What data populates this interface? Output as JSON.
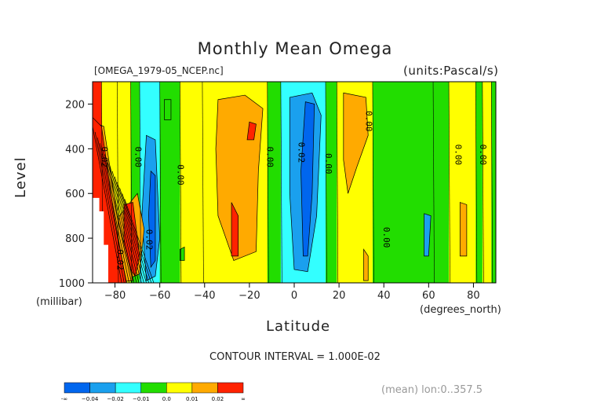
{
  "chart_data": {
    "type": "heatmap",
    "title": "Monthly Mean Omega",
    "file_label": "[OMEGA_1979-05_NCEP.nc]",
    "units_label": "(units:Pascal/s)",
    "ylabel": "Level",
    "yunit": "(millibar)",
    "xlabel": "Latitude",
    "xunit": "(degrees_north)",
    "xlim": [
      -90,
      90
    ],
    "ylim": [
      1000,
      100
    ],
    "xticks": [
      -80,
      -60,
      -40,
      -20,
      0,
      20,
      40,
      60,
      80
    ],
    "yticks": [
      200,
      400,
      600,
      800,
      1000
    ],
    "contour_interval": "CONTOUR INTERVAL = 1.000E-02",
    "footer": "(mean) lon:0..357.5",
    "colorbar": {
      "labels": [
        "-∞",
        "−0.04",
        "−0.02",
        "−0.01",
        "0.0",
        "0.01",
        "0.02",
        "∞"
      ],
      "colors": [
        "#0066ee",
        "#1aa0ee",
        "#33ffff",
        "#22dd00",
        "#ffff00",
        "#ffaa00",
        "#ff2200"
      ]
    },
    "bands": [
      {
        "x0": -90,
        "x1": -86,
        "color": "#ff2200"
      },
      {
        "x0": -86,
        "x1": -79,
        "color": "#ffff00"
      },
      {
        "x0": -79,
        "x1": -73,
        "color": "#ffff00"
      },
      {
        "x0": -73,
        "x1": -69,
        "color": "#22dd00"
      },
      {
        "x0": -69,
        "x1": -60,
        "color": "#33ffff"
      },
      {
        "x0": -60,
        "x1": -51,
        "color": "#22dd00"
      },
      {
        "x0": -51,
        "x1": -41,
        "color": "#ffff00"
      },
      {
        "x0": -41,
        "x1": -12,
        "color": "#ffff00"
      },
      {
        "x0": -12,
        "x1": -6,
        "color": "#22dd00"
      },
      {
        "x0": -6,
        "x1": 14,
        "color": "#33ffff"
      },
      {
        "x0": 14,
        "x1": 19,
        "color": "#22dd00"
      },
      {
        "x0": 19,
        "x1": 35,
        "color": "#ffff00"
      },
      {
        "x0": 35,
        "x1": 62,
        "color": "#22dd00"
      },
      {
        "x0": 62,
        "x1": 69,
        "color": "#22dd00"
      },
      {
        "x0": 69,
        "x1": 81,
        "color": "#ffff00"
      },
      {
        "x0": 81,
        "x1": 84,
        "color": "#22dd00"
      },
      {
        "x0": 84,
        "x1": 88,
        "color": "#ffff00"
      },
      {
        "x0": 88,
        "x1": 90,
        "color": "#22dd00"
      }
    ],
    "blobs": [
      {
        "color": "#ffaa00",
        "points": [
          [
            -34,
            180
          ],
          [
            -22,
            160
          ],
          [
            -14,
            220
          ],
          [
            -16,
            500
          ],
          [
            -17,
            860
          ],
          [
            -27,
            900
          ],
          [
            -34,
            700
          ],
          [
            -35,
            400
          ]
        ]
      },
      {
        "color": "#ff2200",
        "points": [
          [
            -20,
            280
          ],
          [
            -17,
            290
          ],
          [
            -18,
            360
          ],
          [
            -21,
            360
          ]
        ]
      },
      {
        "color": "#ff2200",
        "points": [
          [
            -28,
            640
          ],
          [
            -25,
            700
          ],
          [
            -25,
            880
          ],
          [
            -28,
            880
          ]
        ]
      },
      {
        "color": "#1aa0ee",
        "points": [
          [
            -66,
            340
          ],
          [
            -62,
            360
          ],
          [
            -60,
            800
          ],
          [
            -62,
            970
          ],
          [
            -66,
            990
          ],
          [
            -68,
            700
          ]
        ]
      },
      {
        "color": "#0066ee",
        "points": [
          [
            -64,
            500
          ],
          [
            -62,
            520
          ],
          [
            -62,
            900
          ],
          [
            -64,
            930
          ],
          [
            -65,
            700
          ]
        ]
      },
      {
        "color": "#1aa0ee",
        "points": [
          [
            -2,
            170
          ],
          [
            8,
            150
          ],
          [
            12,
            250
          ],
          [
            10,
            700
          ],
          [
            6,
            950
          ],
          [
            0,
            940
          ],
          [
            -2,
            600
          ]
        ]
      },
      {
        "color": "#0066ee",
        "points": [
          [
            5,
            190
          ],
          [
            9,
            200
          ],
          [
            8,
            600
          ],
          [
            6,
            880
          ],
          [
            4,
            880
          ],
          [
            3,
            500
          ]
        ]
      },
      {
        "color": "#ffaa00",
        "points": [
          [
            22,
            150
          ],
          [
            32,
            170
          ],
          [
            33,
            340
          ],
          [
            28,
            480
          ],
          [
            24,
            600
          ],
          [
            22,
            450
          ]
        ]
      },
      {
        "color": "#ffaa00",
        "points": [
          [
            31,
            850
          ],
          [
            33,
            880
          ],
          [
            33,
            990
          ],
          [
            31,
            990
          ]
        ]
      },
      {
        "color": "#1aa0ee",
        "points": [
          [
            58,
            690
          ],
          [
            61,
            700
          ],
          [
            60,
            880
          ],
          [
            58,
            880
          ]
        ]
      },
      {
        "color": "#ffaa00",
        "points": [
          [
            74,
            640
          ],
          [
            77,
            650
          ],
          [
            77,
            880
          ],
          [
            74,
            880
          ]
        ]
      },
      {
        "color": "#22dd00",
        "points": [
          [
            -51,
            850
          ],
          [
            -49,
            840
          ],
          [
            -49,
            900
          ],
          [
            -51,
            900
          ]
        ]
      },
      {
        "color": "#22dd00",
        "points": [
          [
            -58,
            180
          ],
          [
            -55,
            180
          ],
          [
            -55,
            270
          ],
          [
            -58,
            270
          ]
        ]
      },
      {
        "color": "#ffaa00",
        "points": [
          [
            -78,
            700
          ],
          [
            -70,
            600
          ],
          [
            -67,
            760
          ],
          [
            -69,
            960
          ],
          [
            -76,
            990
          ],
          [
            -82,
            860
          ]
        ]
      },
      {
        "color": "#ff2200",
        "points": [
          [
            -76,
            650
          ],
          [
            -72,
            640
          ],
          [
            -69,
            880
          ],
          [
            -71,
            970
          ],
          [
            -76,
            900
          ]
        ]
      },
      {
        "color": "#ffaa00",
        "points": [
          [
            -90,
            280
          ],
          [
            -85,
            300
          ],
          [
            -79,
            700
          ],
          [
            -72,
            990
          ],
          [
            -82,
            1000
          ],
          [
            -90,
            1000
          ]
        ]
      },
      {
        "color": "#ff2200",
        "points": [
          [
            -90,
            260
          ],
          [
            -86,
            300
          ],
          [
            -81,
            660
          ],
          [
            -75,
            1000
          ],
          [
            -90,
            1000
          ]
        ]
      }
    ],
    "labels": [
      {
        "text": "0.02",
        "x": -86,
        "y": 390
      },
      {
        "text": "0.00",
        "x": -71,
        "y": 390
      },
      {
        "text": "0.00",
        "x": -52,
        "y": 470
      },
      {
        "text": "0.02",
        "x": -66,
        "y": 760
      },
      {
        "text": "0.02",
        "x": -79,
        "y": 850
      },
      {
        "text": "0.00",
        "x": -12,
        "y": 390
      },
      {
        "text": "0.02",
        "x": 2,
        "y": 370
      },
      {
        "text": "0.00",
        "x": 14,
        "y": 420
      },
      {
        "text": "0.00",
        "x": 32,
        "y": 230
      },
      {
        "text": "0.00",
        "x": 40,
        "y": 750
      },
      {
        "text": "0.00",
        "x": 72,
        "y": 380
      },
      {
        "text": "0.00",
        "x": 83,
        "y": 380
      }
    ]
  }
}
